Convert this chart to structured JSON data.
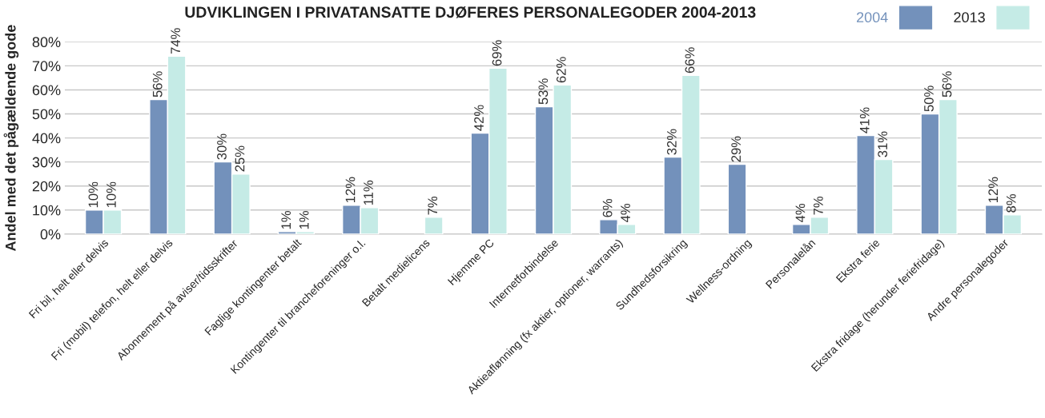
{
  "chart_data": {
    "type": "bar",
    "title": "UDVIKLINGEN I PRIVATANSATTE DJØFERES PERSONALEGODER 2004-2013",
    "ylabel": "Andel med det pågældende gode",
    "categories": [
      "Fri bil, helt eller delvis",
      "Fri (mobil) telefon, helt eller delvis",
      "Abonnement på aviser/tidsskrifter",
      "Faglige kontingenter betalt",
      "Kontingenter til brancheforeninger o.l.",
      "Betalt medielicens",
      "Hjemme PC",
      "Internetforbindelse",
      "Aktieaflønning (fx aktier, optioner, warrants)",
      "Sundhedsforsikring",
      "Wellness-ordning",
      "Personalelån",
      "Ekstra ferie",
      "Ekstra fridage (herunder feriefridage)",
      "Andre personalegoder"
    ],
    "series": [
      {
        "name": "2004",
        "color": "#7391bb",
        "values": [
          10,
          56,
          30,
          1,
          12,
          null,
          42,
          53,
          6,
          32,
          29,
          4,
          41,
          50,
          12
        ],
        "value_labels": [
          "10%",
          "56%",
          "30%",
          "1%",
          "12%",
          null,
          "42%",
          "53%",
          "6%",
          "32%",
          "29%",
          "4%",
          "41%",
          "50%",
          "12%"
        ]
      },
      {
        "name": "2013",
        "color": "#c5ebe6",
        "values": [
          10,
          74,
          25,
          1,
          11,
          7,
          69,
          62,
          4,
          66,
          null,
          7,
          31,
          56,
          8
        ],
        "value_labels": [
          "10%",
          "74%",
          "25%",
          "1%",
          "11%",
          "7%",
          "69%",
          "62%",
          "4%",
          "66%",
          null,
          "7%",
          "31%",
          "56%",
          "8%"
        ]
      }
    ],
    "ylim": [
      0,
      80
    ],
    "yticks": [
      {
        "value": 0,
        "label": "0%"
      },
      {
        "value": 10,
        "label": "10%"
      },
      {
        "value": 20,
        "label": "20%"
      },
      {
        "value": 30,
        "label": "30%"
      },
      {
        "value": 40,
        "label": "40%"
      },
      {
        "value": 50,
        "label": "50%"
      },
      {
        "value": 60,
        "label": "60%"
      },
      {
        "value": 70,
        "label": "70%"
      },
      {
        "value": 80,
        "label": "80%"
      }
    ],
    "grid": "y",
    "legend": "top right"
  }
}
